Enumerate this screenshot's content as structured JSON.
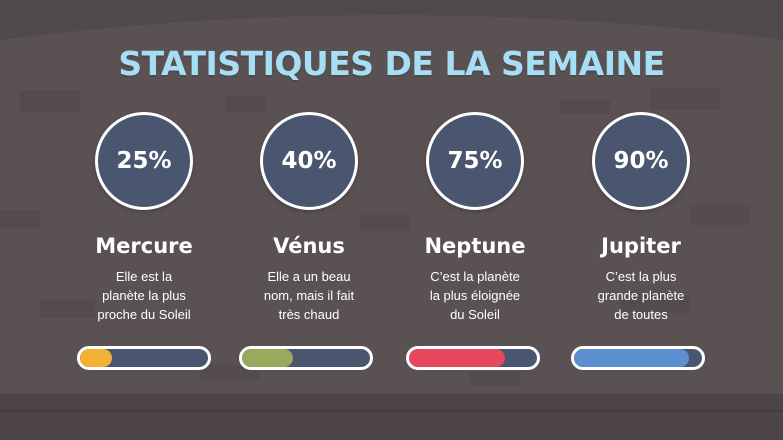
{
  "title": "STATISTIQUES DE LA SEMAINE",
  "colors": {
    "background": "#5a5153",
    "title": "#a6dff5",
    "circle": "#4a5670",
    "bar_track": "#4a5670"
  },
  "items": [
    {
      "percent": "25%",
      "value": 0.25,
      "name": "Mercure",
      "desc_lines": [
        "Elle est la",
        "planète la plus",
        "proche du Soleil"
      ],
      "color": "#f2b134"
    },
    {
      "percent": "40%",
      "value": 0.4,
      "name": "Vénus",
      "desc_lines": [
        "Elle a un beau",
        "nom, mais il fait",
        "très chaud"
      ],
      "color": "#9aaa5c"
    },
    {
      "percent": "75%",
      "value": 0.75,
      "name": "Neptune",
      "desc_lines": [
        "C’est la planète",
        "la plus éloignée",
        "du Soleil"
      ],
      "color": "#e8485f"
    },
    {
      "percent": "90%",
      "value": 0.9,
      "name": "Jupiter",
      "desc_lines": [
        "C’est la plus",
        "grande planète",
        "de toutes"
      ],
      "color": "#5b8fd0"
    }
  ]
}
